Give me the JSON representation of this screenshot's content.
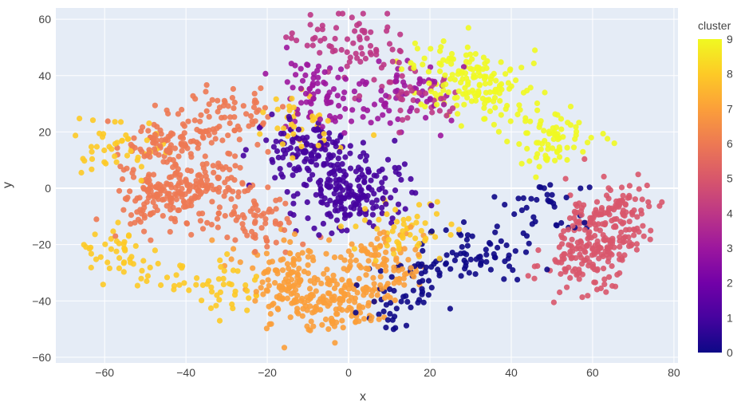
{
  "chart_data": {
    "type": "scatter",
    "title": "",
    "xlabel": "x",
    "ylabel": "y",
    "xlim": [
      -72,
      81
    ],
    "ylim": [
      -62,
      64
    ],
    "x_ticks": [
      -60,
      -40,
      -20,
      0,
      20,
      40,
      60,
      80
    ],
    "y_ticks": [
      -60,
      -40,
      -20,
      0,
      20,
      40,
      60
    ],
    "x_tick_labels": [
      "−60",
      "−40",
      "−20",
      "0",
      "20",
      "40",
      "60",
      "80"
    ],
    "y_tick_labels": [
      "−60",
      "−40",
      "−20",
      "0",
      "20",
      "40",
      "60"
    ],
    "grid": true,
    "color_variable": "cluster",
    "colorbar": {
      "title": "cluster",
      "range": [
        0,
        9
      ],
      "ticks": [
        0,
        1,
        2,
        3,
        4,
        5,
        6,
        7,
        8,
        9
      ],
      "colorscale": [
        "#0d0887",
        "#46039f",
        "#7201a8",
        "#9c179e",
        "#bd3786",
        "#d8576b",
        "#ed7953",
        "#fb9f3a",
        "#fdca26",
        "#f0f921"
      ]
    },
    "clusters": [
      {
        "cluster": 0,
        "color": "#0d0887",
        "centers": [
          [
            16,
            -28
          ],
          [
            27,
            -22
          ],
          [
            37,
            -24
          ],
          [
            12,
            -40
          ],
          [
            50,
            -8
          ]
        ],
        "points": 160
      },
      {
        "cluster": 1,
        "color": "#46039f",
        "centers": [
          [
            -5,
            8
          ],
          [
            -12,
            15
          ],
          [
            5,
            0
          ],
          [
            -2,
            -5
          ]
        ],
        "points": 300
      },
      {
        "cluster": 3,
        "color": "#9c179e",
        "centers": [
          [
            -10,
            38
          ],
          [
            -5,
            30
          ],
          [
            15,
            35
          ]
        ],
        "points": 140
      },
      {
        "cluster": 4,
        "color": "#bd3786",
        "centers": [
          [
            5,
            50
          ],
          [
            -5,
            52
          ],
          [
            15,
            32
          ]
        ],
        "points": 110
      },
      {
        "cluster": 5,
        "color": "#d8576b",
        "centers": [
          [
            62,
            -18
          ],
          [
            65,
            -8
          ],
          [
            58,
            -25
          ]
        ],
        "points": 280
      },
      {
        "cluster": 6,
        "color": "#ed7953",
        "centers": [
          [
            -45,
            15
          ],
          [
            -38,
            0
          ],
          [
            -22,
            -10
          ],
          [
            -30,
            25
          ],
          [
            -48,
            -5
          ]
        ],
        "points": 450
      },
      {
        "cluster": 7,
        "color": "#fb9f3a",
        "centers": [
          [
            -15,
            -30
          ],
          [
            0,
            -40
          ],
          [
            -10,
            -40
          ],
          [
            8,
            -25
          ]
        ],
        "points": 360
      },
      {
        "cluster": 8,
        "color": "#fdca26",
        "centers": [
          [
            -57,
            -25
          ],
          [
            -32,
            -35
          ],
          [
            -57,
            15
          ],
          [
            15,
            -15
          ],
          [
            -12,
            22
          ]
        ],
        "points": 230
      },
      {
        "cluster": 9,
        "color": "#f0f921",
        "centers": [
          [
            35,
            35
          ],
          [
            25,
            42
          ],
          [
            50,
            18
          ]
        ],
        "points": 230
      }
    ]
  }
}
